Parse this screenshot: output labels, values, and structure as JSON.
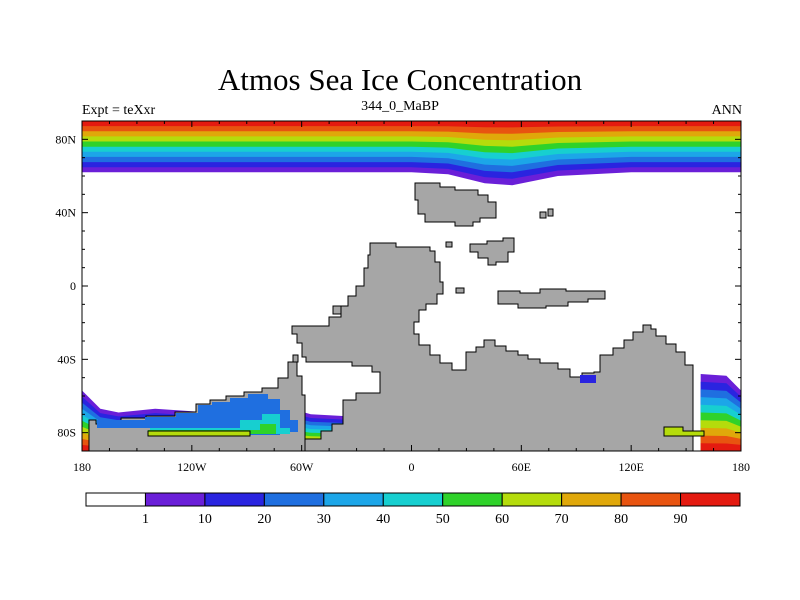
{
  "title": "Atmos Sea Ice Concentration",
  "subtitle": "344_0_MaBP",
  "experiment_label": "Expt = teXxr",
  "season_label": "ANN",
  "colors": {
    "land": "#a6a6a6",
    "ocean": "#ffffff",
    "outline": "#000000"
  },
  "chart_data": {
    "type": "heatmap",
    "title": "Atmos Sea Ice Concentration",
    "variable_units": "%",
    "x_axis": {
      "range": [
        -180,
        180
      ],
      "ticks": [
        {
          "value": -180,
          "label": "180"
        },
        {
          "value": -120,
          "label": "120W"
        },
        {
          "value": -60,
          "label": "60W"
        },
        {
          "value": 0,
          "label": "0"
        },
        {
          "value": 60,
          "label": "60E"
        },
        {
          "value": 120,
          "label": "120E"
        },
        {
          "value": 180,
          "label": "180"
        }
      ]
    },
    "y_axis": {
      "range": [
        -90,
        90
      ],
      "ticks": [
        {
          "value": 80,
          "label": "80N"
        },
        {
          "value": 40,
          "label": "40N"
        },
        {
          "value": 0,
          "label": "0"
        },
        {
          "value": -40,
          "label": "40S"
        },
        {
          "value": -80,
          "label": "80S"
        }
      ]
    },
    "levels": [
      {
        "min": 0,
        "max": 1,
        "color": "#ffffff"
      },
      {
        "min": 1,
        "max": 10,
        "color": "#6a1fd8"
      },
      {
        "min": 10,
        "max": 20,
        "color": "#2a24e0"
      },
      {
        "min": 20,
        "max": 30,
        "color": "#1f6fe0"
      },
      {
        "min": 30,
        "max": 40,
        "color": "#1ca6e8"
      },
      {
        "min": 40,
        "max": 50,
        "color": "#17cfd0"
      },
      {
        "min": 50,
        "max": 60,
        "color": "#2fd22a"
      },
      {
        "min": 60,
        "max": 70,
        "color": "#b5dc0c"
      },
      {
        "min": 70,
        "max": 80,
        "color": "#e0a80a"
      },
      {
        "min": 80,
        "max": 90,
        "color": "#e85410"
      },
      {
        "min": 90,
        "max": 100,
        "color": "#e41a10"
      }
    ],
    "colorbar_labels": [
      "1",
      "10",
      "20",
      "30",
      "40",
      "50",
      "60",
      "70",
      "80",
      "90"
    ],
    "north_ice_edge": [
      {
        "lon": -180,
        "lat": 62
      },
      {
        "lon": -120,
        "lat": 62
      },
      {
        "lon": -60,
        "lat": 62
      },
      {
        "lon": 0,
        "lat": 62
      },
      {
        "lon": 20,
        "lat": 61
      },
      {
        "lon": 40,
        "lat": 56
      },
      {
        "lon": 55,
        "lat": 55
      },
      {
        "lon": 80,
        "lat": 60
      },
      {
        "lon": 120,
        "lat": 62
      },
      {
        "lon": 180,
        "lat": 62
      }
    ],
    "south_ice_edge_west": [
      {
        "lon": -180,
        "lat": -57
      },
      {
        "lon": -170,
        "lat": -67
      },
      {
        "lon": -160,
        "lat": -69
      },
      {
        "lon": -140,
        "lat": -67
      },
      {
        "lon": -110,
        "lat": -69
      },
      {
        "lon": -80,
        "lat": -63
      },
      {
        "lon": -55,
        "lat": -70
      },
      {
        "lon": -35,
        "lat": -71
      },
      {
        "lon": -35,
        "lat": -82
      }
    ],
    "south_ice_edge_east": [
      {
        "lon": 158,
        "lat": -48
      },
      {
        "lon": 172,
        "lat": -49
      },
      {
        "lon": 180,
        "lat": -57
      },
      {
        "lon": 180,
        "lat": -72
      }
    ]
  }
}
